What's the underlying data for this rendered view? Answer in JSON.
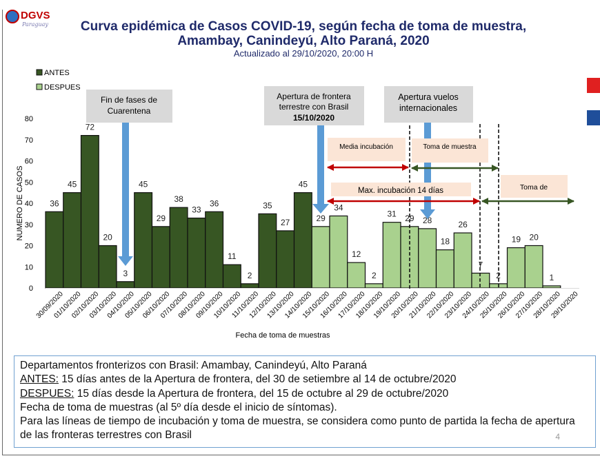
{
  "header": {
    "logo_text": "DGVS",
    "logo_subtext": "Paraguay",
    "title_line1": "Curva epidémica de Casos COVID-19, según fecha de toma de muestra,",
    "title_line2": "Amambay, Canindeyú, Alto Paraná, 2020",
    "subtitle": "Actualizado al 29/10/2020,  20:00 H"
  },
  "chart_data": {
    "type": "bar",
    "title": "Curva epidémica de Casos COVID-19, según fecha de toma de muestra, Amambay, Canindeyú, Alto Paraná, 2020",
    "xlabel": "Fecha de toma de muestras",
    "ylabel": "NUMERO DE CASOS",
    "ylim": [
      0,
      80
    ],
    "yticks": [
      0,
      10,
      20,
      30,
      40,
      50,
      60,
      70,
      80
    ],
    "legend_position": "top-left",
    "grid": false,
    "categories": [
      "30/09/2020",
      "01/10/2020",
      "02/10/2020",
      "03/10/2020",
      "04/10/2020",
      "05/10/2020",
      "06/10/2020",
      "07/10/2020",
      "08/10/2020",
      "09/10/2020",
      "10/10/2020",
      "11/10/2020",
      "12/10/2020",
      "13/10/2020",
      "14/10/2020",
      "15/10/2020",
      "16/10/2020",
      "17/10/2020",
      "18/10/2020",
      "19/10/2020",
      "20/10/2020",
      "21/10/2020",
      "22/10/2020",
      "23/10/2020",
      "24/10/2020",
      "25/10/2020",
      "26/10/2020",
      "27/10/2020",
      "28/10/2020",
      "29/10/2020"
    ],
    "series": [
      {
        "name": "ANTES",
        "color": "#375623",
        "values": [
          36,
          45,
          72,
          20,
          3,
          45,
          29,
          38,
          33,
          36,
          11,
          2,
          35,
          27,
          45,
          null,
          null,
          null,
          null,
          null,
          null,
          null,
          null,
          null,
          null,
          null,
          null,
          null,
          null,
          null
        ]
      },
      {
        "name": "DESPUES",
        "color": "#a9d18e",
        "values": [
          null,
          null,
          null,
          null,
          null,
          null,
          null,
          null,
          null,
          null,
          null,
          null,
          null,
          null,
          null,
          29,
          34,
          12,
          2,
          31,
          29,
          28,
          18,
          26,
          7,
          2,
          19,
          20,
          1,
          null
        ]
      }
    ],
    "annotations": {
      "fin_fases": "Fin de fases de Cuarentena",
      "fin_fases_l1": "Fin de fases de",
      "fin_fases_l2": "Cuarentena",
      "apertura_frontera_l1": "Apertura de frontera",
      "apertura_frontera_l2": "terrestre con Brasil",
      "apertura_frontera_date": "15/10/2020",
      "vuelos_l1": "Apertura vuelos",
      "vuelos_l2": "internacionales",
      "media_incubacion": "Media incubación",
      "toma_muestra_1": "Toma de muestra",
      "max_incubacion": "Max. incubación 14 días",
      "toma_muestra_2": "Toma de"
    }
  },
  "note": {
    "line1": "Departamentos fronterizos con Brasil: Amambay, Canindeyú, Alto Paraná",
    "antes_label": "ANTES:",
    "antes_text": " 15 días antes de la Apertura de frontera, del  30 de setiembre al 14 de octubre/2020",
    "despues_label": "DESPUES:",
    "despues_text": " 15 días desde la Apertura de frontera, del 15 de octubre al 29 de octubre/2020",
    "line4": "Fecha de toma de muestras (al 5º día desde el inicio de síntomas).",
    "line5": "Para las líneas de tiempo de incubación y toma de muestra, se considera como punto de partida la fecha de apertura de las fronteras terrestres con Brasil",
    "page_number": "4"
  },
  "colors": {
    "antes": "#375623",
    "despues": "#a9d18e",
    "title": "#1f2a6a",
    "arrow_blue": "#5b9bd5",
    "arrow_red": "#c00000",
    "arrow_green": "#375623",
    "note_box": "#fbe5d6"
  }
}
